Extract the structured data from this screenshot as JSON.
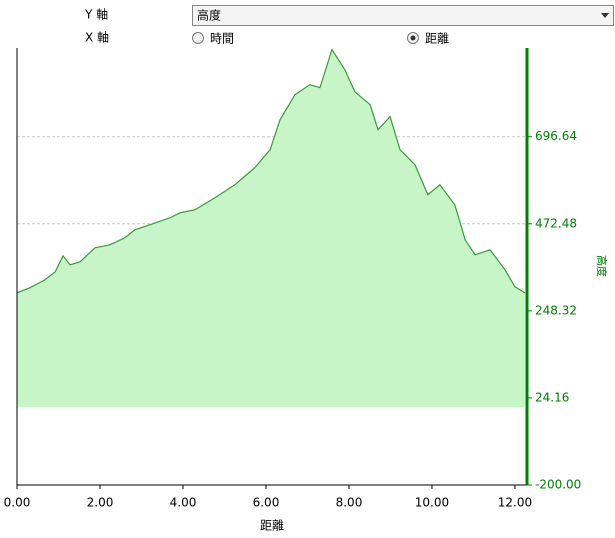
{
  "controls": {
    "y_axis_label": "Y 軸",
    "y_axis_value": "高度",
    "x_axis_label": "X 軸",
    "x_options": [
      {
        "label": "時間",
        "selected": false
      },
      {
        "label": "距離",
        "selected": true
      }
    ]
  },
  "chart_data": {
    "type": "area",
    "xlabel": "距離",
    "ylabel": "高度",
    "x": [
      0,
      0.31,
      0.67,
      0.92,
      1.11,
      1.28,
      1.52,
      1.88,
      2.24,
      2.6,
      2.84,
      3.2,
      3.69,
      3.93,
      4.29,
      4.77,
      5.25,
      5.73,
      6.1,
      6.34,
      6.7,
      7.06,
      7.3,
      7.59,
      7.9,
      8.14,
      8.51,
      8.7,
      8.99,
      9.23,
      9.59,
      9.9,
      10.19,
      10.55,
      10.8,
      11.04,
      11.4,
      11.76,
      12,
      12.24
    ],
    "values": [
      294.7,
      307.6,
      328,
      348.8,
      390,
      366.8,
      374.6,
      410.6,
      418.4,
      436.4,
      457,
      469.9,
      488,
      500.8,
      508.6,
      539.5,
      573,
      616.8,
      663.2,
      740.5,
      804.9,
      830.6,
      822.9,
      920.8,
      869.3,
      812.6,
      779.1,
      714.7,
      748.2,
      663.2,
      624.5,
      547.2,
      573,
      521.4,
      431.3,
      392.6,
      405.5,
      354,
      310.2,
      294.7
    ],
    "color": "#3a9a3a",
    "fill": "#c8f5c8",
    "axis_color": "#008000",
    "xlim": [
      0,
      12.29
    ],
    "ylim": [
      -200,
      925
    ],
    "xticks": [
      {
        "value": 0,
        "label": "0.00"
      },
      {
        "value": 2,
        "label": "2.00"
      },
      {
        "value": 4,
        "label": "4.00"
      },
      {
        "value": 6,
        "label": "6.00"
      },
      {
        "value": 8,
        "label": "8.00"
      },
      {
        "value": 10,
        "label": "10.00"
      },
      {
        "value": 12,
        "label": "12.00"
      }
    ],
    "yticks": [
      {
        "value": -200,
        "label": "-200.00"
      },
      24.16,
      248.32,
      472.48,
      696.64
    ],
    "grid": true
  }
}
